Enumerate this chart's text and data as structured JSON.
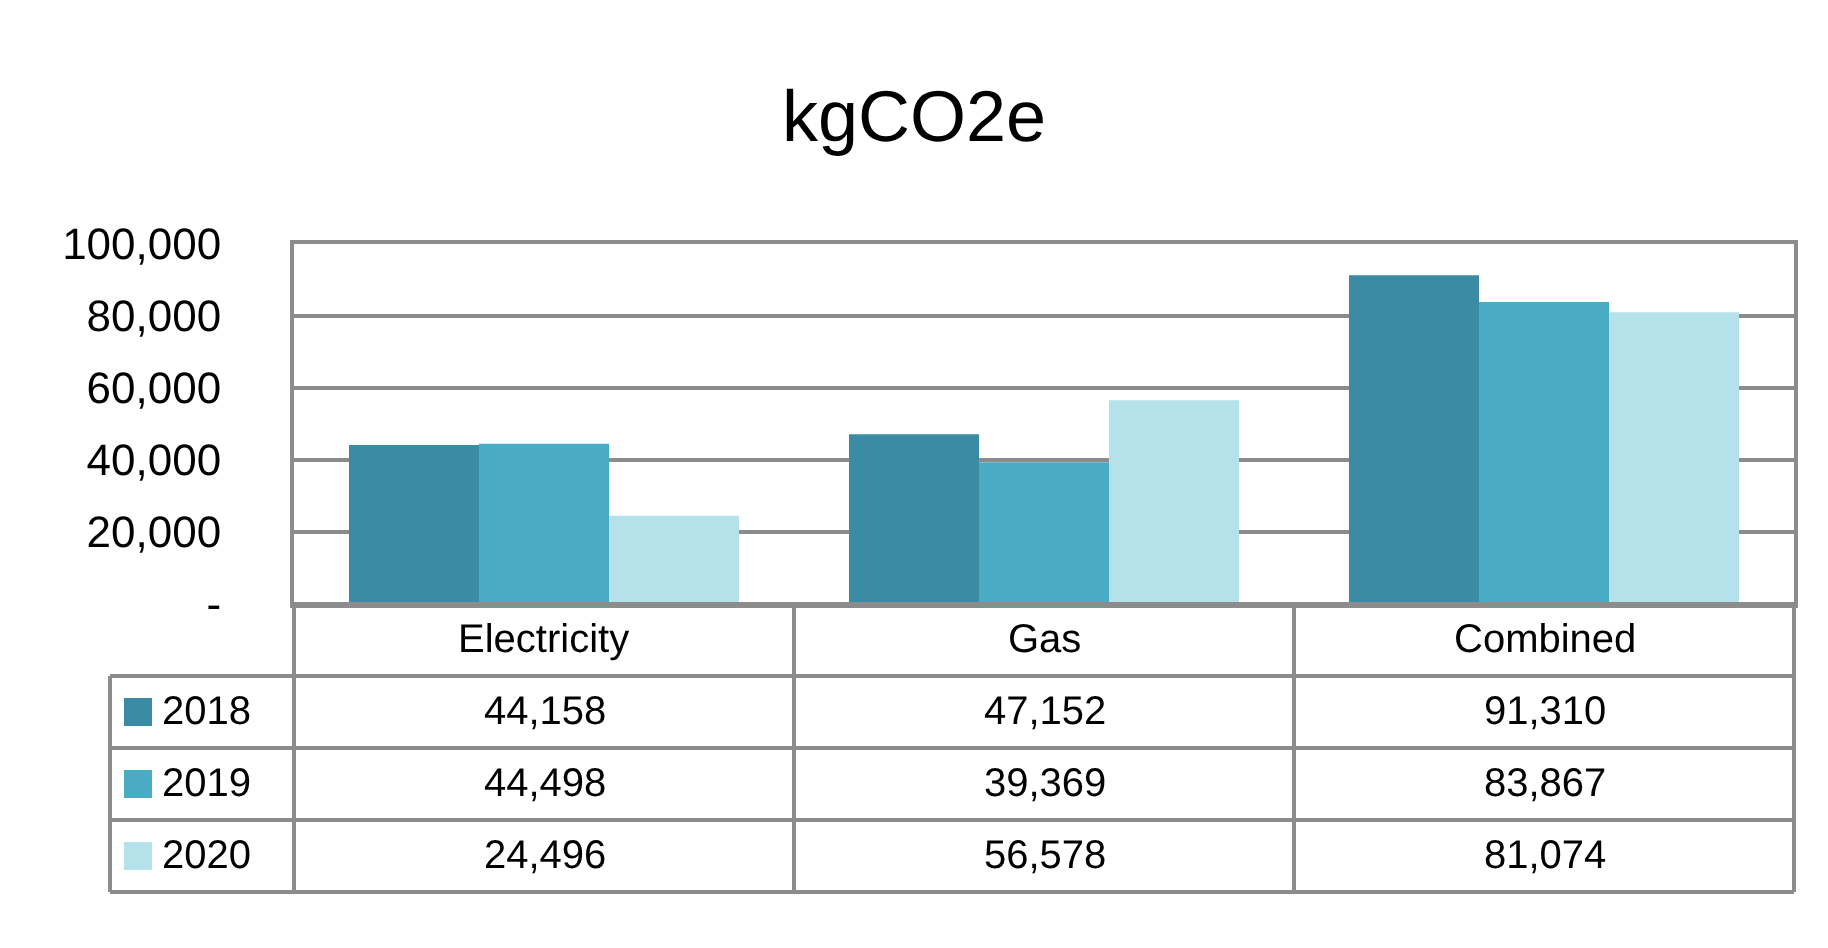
{
  "chart_data": {
    "type": "bar",
    "title": "kgCO2e",
    "categories": [
      "Electricity",
      "Gas",
      "Combined"
    ],
    "series": [
      {
        "name": "2018",
        "color": "#3a8ba3",
        "values": [
          44158,
          47152,
          91310
        ],
        "value_labels": [
          "44,158",
          "47,152",
          "91,310"
        ]
      },
      {
        "name": "2019",
        "color": "#4aabc5",
        "values": [
          44498,
          39369,
          83867
        ],
        "value_labels": [
          "44,498",
          "39,369",
          "83,867"
        ]
      },
      {
        "name": "2020",
        "color": "#b5e2ea",
        "values": [
          24496,
          56578,
          81074
        ],
        "value_labels": [
          "24,496",
          "56,578",
          "81,074"
        ]
      }
    ],
    "ylim": [
      0,
      100000
    ],
    "yticks": [
      {
        "value": 0,
        "label": "-"
      },
      {
        "value": 20000,
        "label": "20,000"
      },
      {
        "value": 40000,
        "label": "40,000"
      },
      {
        "value": 60000,
        "label": "60,000"
      },
      {
        "value": 80000,
        "label": "80,000"
      },
      {
        "value": 100000,
        "label": "100,000"
      }
    ],
    "grid": "y",
    "legend": "bottom"
  }
}
